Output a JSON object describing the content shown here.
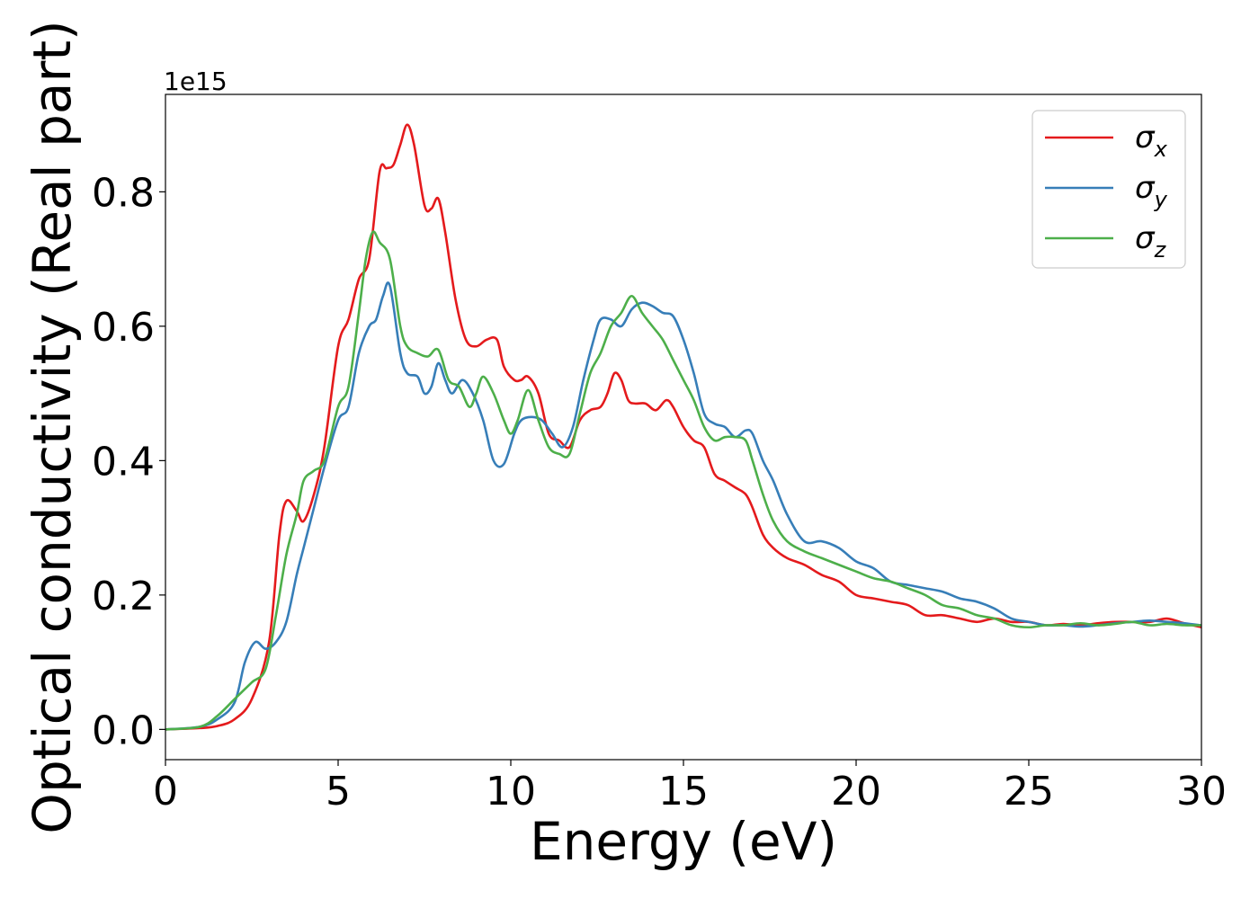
{
  "chart_data": {
    "type": "line",
    "title": "",
    "xlabel": "Energy (eV)",
    "ylabel": "Optical conductivity (Real part)",
    "y_offset_label": "1e15",
    "xlim": [
      0,
      30
    ],
    "ylim": [
      -0.045,
      0.945
    ],
    "x_ticks": [
      0,
      5,
      10,
      15,
      20,
      25,
      30
    ],
    "x_tick_labels": [
      "0",
      "5",
      "10",
      "15",
      "20",
      "25",
      "30"
    ],
    "y_ticks": [
      0.0,
      0.2,
      0.4,
      0.6,
      0.8
    ],
    "y_tick_labels": [
      "0.0",
      "0.2",
      "0.4",
      "0.6",
      "0.8"
    ],
    "grid": false,
    "legend_position": "top-right",
    "series": [
      {
        "name": "σx",
        "symbol": "σ",
        "subscript": "x",
        "color": "#e41a1c",
        "x": [
          0,
          1.0,
          1.5,
          2.0,
          2.5,
          3.0,
          3.3,
          3.5,
          3.8,
          4.0,
          4.3,
          4.6,
          5.0,
          5.3,
          5.6,
          5.9,
          6.2,
          6.4,
          6.6,
          6.8,
          7.0,
          7.2,
          7.5,
          7.7,
          7.9,
          8.1,
          8.4,
          8.7,
          9.0,
          9.3,
          9.6,
          9.8,
          10.1,
          10.3,
          10.5,
          10.8,
          11.1,
          11.4,
          11.7,
          12.0,
          12.3,
          12.6,
          12.8,
          13.0,
          13.2,
          13.4,
          13.6,
          13.9,
          14.2,
          14.5,
          14.7,
          15.0,
          15.3,
          15.6,
          15.9,
          16.2,
          16.5,
          16.8,
          17.0,
          17.3,
          17.6,
          18.0,
          18.5,
          19.0,
          19.5,
          20.0,
          20.5,
          21.0,
          21.5,
          22.0,
          22.5,
          23.0,
          23.5,
          24.0,
          24.5,
          25.0,
          25.5,
          26.0,
          26.5,
          27.0,
          27.5,
          28.0,
          28.5,
          29.0,
          29.5,
          30.0
        ],
        "y": [
          0.0,
          0.002,
          0.005,
          0.015,
          0.045,
          0.13,
          0.29,
          0.34,
          0.325,
          0.31,
          0.35,
          0.42,
          0.57,
          0.61,
          0.67,
          0.7,
          0.83,
          0.835,
          0.84,
          0.87,
          0.9,
          0.87,
          0.78,
          0.775,
          0.79,
          0.74,
          0.64,
          0.58,
          0.57,
          0.58,
          0.58,
          0.54,
          0.52,
          0.52,
          0.525,
          0.5,
          0.44,
          0.43,
          0.42,
          0.46,
          0.475,
          0.48,
          0.5,
          0.53,
          0.52,
          0.49,
          0.485,
          0.485,
          0.475,
          0.49,
          0.48,
          0.45,
          0.43,
          0.42,
          0.38,
          0.37,
          0.36,
          0.35,
          0.33,
          0.29,
          0.27,
          0.255,
          0.245,
          0.23,
          0.22,
          0.2,
          0.195,
          0.19,
          0.185,
          0.17,
          0.17,
          0.165,
          0.16,
          0.165,
          0.16,
          0.16,
          0.155,
          0.157,
          0.155,
          0.158,
          0.16,
          0.16,
          0.16,
          0.165,
          0.158,
          0.152
        ]
      },
      {
        "name": "σy",
        "symbol": "σ",
        "subscript": "y",
        "color": "#377eb8",
        "x": [
          0,
          1.0,
          1.5,
          2.0,
          2.3,
          2.6,
          2.9,
          3.2,
          3.5,
          3.8,
          4.0,
          4.3,
          4.6,
          5.0,
          5.3,
          5.6,
          5.9,
          6.1,
          6.3,
          6.5,
          6.8,
          7.0,
          7.3,
          7.5,
          7.7,
          7.9,
          8.1,
          8.3,
          8.6,
          8.9,
          9.2,
          9.5,
          9.8,
          10.1,
          10.3,
          10.6,
          10.9,
          11.2,
          11.5,
          11.8,
          12.1,
          12.4,
          12.6,
          12.9,
          13.2,
          13.5,
          13.8,
          14.1,
          14.4,
          14.7,
          15.0,
          15.3,
          15.6,
          15.9,
          16.2,
          16.5,
          16.8,
          17.0,
          17.3,
          17.6,
          18.0,
          18.5,
          19.0,
          19.5,
          20.0,
          20.5,
          21.0,
          21.5,
          22.0,
          22.5,
          23.0,
          23.5,
          24.0,
          24.5,
          25.0,
          25.5,
          26.0,
          26.5,
          27.0,
          27.5,
          28.0,
          28.5,
          29.0,
          29.5,
          30.0
        ],
        "y": [
          0.0,
          0.004,
          0.015,
          0.04,
          0.1,
          0.13,
          0.12,
          0.13,
          0.16,
          0.23,
          0.27,
          0.33,
          0.39,
          0.46,
          0.48,
          0.56,
          0.6,
          0.61,
          0.645,
          0.66,
          0.56,
          0.53,
          0.525,
          0.5,
          0.51,
          0.545,
          0.52,
          0.5,
          0.52,
          0.5,
          0.46,
          0.4,
          0.395,
          0.44,
          0.46,
          0.465,
          0.46,
          0.44,
          0.42,
          0.45,
          0.52,
          0.58,
          0.61,
          0.61,
          0.6,
          0.625,
          0.635,
          0.63,
          0.62,
          0.615,
          0.58,
          0.53,
          0.47,
          0.455,
          0.45,
          0.435,
          0.445,
          0.44,
          0.4,
          0.37,
          0.32,
          0.28,
          0.28,
          0.27,
          0.25,
          0.24,
          0.22,
          0.215,
          0.21,
          0.205,
          0.195,
          0.19,
          0.18,
          0.165,
          0.16,
          0.155,
          0.155,
          0.153,
          0.155,
          0.158,
          0.16,
          0.162,
          0.16,
          0.158,
          0.155
        ]
      },
      {
        "name": "σz",
        "symbol": "σ",
        "subscript": "z",
        "color": "#4daf4a",
        "x": [
          0,
          1.0,
          1.5,
          2.0,
          2.5,
          2.9,
          3.2,
          3.5,
          3.8,
          4.0,
          4.3,
          4.6,
          5.0,
          5.3,
          5.6,
          5.8,
          6.0,
          6.2,
          6.5,
          6.8,
          7.0,
          7.3,
          7.6,
          7.9,
          8.2,
          8.5,
          8.8,
          9.0,
          9.2,
          9.5,
          9.8,
          10.0,
          10.2,
          10.5,
          10.8,
          11.1,
          11.4,
          11.7,
          12.0,
          12.3,
          12.6,
          12.9,
          13.2,
          13.5,
          13.8,
          14.1,
          14.4,
          14.7,
          15.0,
          15.3,
          15.6,
          15.9,
          16.2,
          16.5,
          16.8,
          17.0,
          17.3,
          17.6,
          18.0,
          18.5,
          19.0,
          19.5,
          20.0,
          20.5,
          21.0,
          21.5,
          22.0,
          22.5,
          23.0,
          23.5,
          24.0,
          24.5,
          25.0,
          25.5,
          26.0,
          26.5,
          27.0,
          27.5,
          28.0,
          28.5,
          29.0,
          29.5,
          30.0
        ],
        "y": [
          0.0,
          0.004,
          0.02,
          0.045,
          0.07,
          0.09,
          0.17,
          0.26,
          0.32,
          0.37,
          0.385,
          0.4,
          0.48,
          0.51,
          0.62,
          0.7,
          0.74,
          0.725,
          0.7,
          0.6,
          0.57,
          0.56,
          0.555,
          0.565,
          0.52,
          0.51,
          0.48,
          0.5,
          0.525,
          0.5,
          0.46,
          0.44,
          0.46,
          0.505,
          0.46,
          0.42,
          0.41,
          0.41,
          0.47,
          0.53,
          0.56,
          0.6,
          0.62,
          0.645,
          0.62,
          0.6,
          0.58,
          0.55,
          0.52,
          0.49,
          0.45,
          0.43,
          0.435,
          0.435,
          0.43,
          0.4,
          0.35,
          0.31,
          0.28,
          0.265,
          0.255,
          0.245,
          0.235,
          0.225,
          0.22,
          0.21,
          0.2,
          0.185,
          0.18,
          0.17,
          0.165,
          0.155,
          0.152,
          0.155,
          0.155,
          0.158,
          0.155,
          0.157,
          0.16,
          0.155,
          0.157,
          0.155,
          0.155
        ]
      }
    ]
  }
}
